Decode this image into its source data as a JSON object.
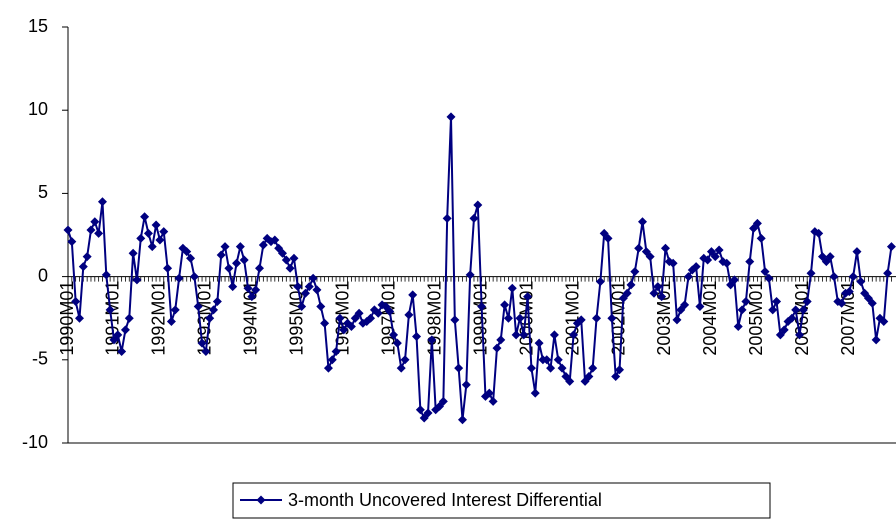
{
  "chart_data": {
    "type": "line",
    "categories": [
      "1990M01",
      null,
      null,
      null,
      null,
      null,
      null,
      null,
      null,
      null,
      null,
      null,
      "1991M01",
      null,
      null,
      null,
      null,
      null,
      null,
      null,
      null,
      null,
      null,
      null,
      "1992M01",
      null,
      null,
      null,
      null,
      null,
      null,
      null,
      null,
      null,
      null,
      null,
      "1993M01",
      null,
      null,
      null,
      null,
      null,
      null,
      null,
      null,
      null,
      null,
      null,
      "1994M01",
      null,
      null,
      null,
      null,
      null,
      null,
      null,
      null,
      null,
      null,
      null,
      "1995M01",
      null,
      null,
      null,
      null,
      null,
      null,
      null,
      null,
      null,
      null,
      null,
      "1996M01",
      null,
      null,
      null,
      null,
      null,
      null,
      null,
      null,
      null,
      null,
      null,
      "1997M01",
      null,
      null,
      null,
      null,
      null,
      null,
      null,
      null,
      null,
      null,
      null,
      "1998M01",
      null,
      null,
      null,
      null,
      null,
      null,
      null,
      null,
      null,
      null,
      null,
      "1999M01",
      null,
      null,
      null,
      null,
      null,
      null,
      null,
      null,
      null,
      null,
      null,
      "2000M01",
      null,
      null,
      null,
      null,
      null,
      null,
      null,
      null,
      null,
      null,
      null,
      "2001M01",
      null,
      null,
      null,
      null,
      null,
      null,
      null,
      null,
      null,
      null,
      null,
      "2002M01",
      null,
      null,
      null,
      null,
      null,
      null,
      null,
      null,
      null,
      null,
      null,
      "2003M01",
      null,
      null,
      null,
      null,
      null,
      null,
      null,
      null,
      null,
      null,
      null,
      "2004M01",
      null,
      null,
      null,
      null,
      null,
      null,
      null,
      null,
      null,
      null,
      null,
      "2005M01",
      null,
      null,
      null,
      null,
      null,
      null,
      null,
      null,
      null,
      null,
      null,
      "2006M01",
      null,
      null,
      null,
      null,
      null,
      null,
      null,
      null,
      null,
      null,
      null,
      "2007M01",
      null,
      null,
      null,
      null,
      null,
      null,
      null,
      null,
      null,
      null,
      null
    ],
    "series": [
      {
        "name": "3-month Uncovered Interest Differential",
        "color": "#000080",
        "values": [
          2.8,
          2.1,
          -1.5,
          -2.5,
          0.6,
          1.2,
          2.8,
          3.3,
          2.6,
          4.5,
          0.1,
          -2.0,
          -3.8,
          -3.5,
          -4.5,
          -3.2,
          -2.5,
          1.4,
          -0.2,
          2.3,
          3.6,
          2.6,
          1.8,
          3.1,
          2.2,
          2.7,
          0.5,
          -2.7,
          -2.0,
          -0.1,
          1.7,
          1.5,
          1.1,
          0.0,
          -1.8,
          -4.0,
          -4.5,
          -2.5,
          -2.0,
          -1.5,
          1.3,
          1.8,
          0.5,
          -0.6,
          0.8,
          1.8,
          1.0,
          -0.7,
          -1.2,
          -0.8,
          0.5,
          1.9,
          2.3,
          2.1,
          2.2,
          1.7,
          1.4,
          1.0,
          0.5,
          1.1,
          -0.6,
          -1.8,
          -1.0,
          -0.6,
          -0.1,
          -0.8,
          -1.8,
          -2.8,
          -5.5,
          -5.0,
          -4.5,
          -2.5,
          -3.2,
          -2.8,
          -3.0,
          -2.5,
          -2.2,
          -2.8,
          -2.7,
          -2.5,
          -2.0,
          -2.2,
          -1.7,
          -1.8,
          -2.1,
          -3.5,
          -4.0,
          -5.5,
          -5.0,
          -2.3,
          -1.1,
          -3.6,
          -8.0,
          -8.5,
          -8.2,
          -3.8,
          -8.0,
          -7.8,
          -7.5,
          3.5,
          9.6,
          -2.6,
          -5.5,
          -8.6,
          -6.5,
          0.1,
          3.5,
          4.3,
          -1.8,
          -7.2,
          -7.0,
          -7.5,
          -4.3,
          -3.8,
          -1.7,
          -2.5,
          -0.7,
          -3.5,
          -2.5,
          -3.5,
          -1.2,
          -5.5,
          -7.0,
          -4.0,
          -5.0,
          -5.0,
          -5.5,
          -3.5,
          -5.0,
          -5.5,
          -6.0,
          -6.3,
          -3.5,
          -2.8,
          -2.6,
          -6.3,
          -6.0,
          -5.5,
          -2.5,
          -0.3,
          2.6,
          2.3,
          -2.5,
          -6.0,
          -5.6,
          -1.3,
          -1.0,
          -0.5,
          0.3,
          1.7,
          3.3,
          1.5,
          1.2,
          -1.0,
          -0.6,
          -1.2,
          1.7,
          0.9,
          0.8,
          -2.6,
          -2.0,
          -1.7,
          0.0,
          0.4,
          0.6,
          -1.8,
          1.1,
          1.0,
          1.5,
          1.2,
          1.6,
          0.9,
          0.8,
          -0.5,
          -0.2,
          -3.0,
          -2.0,
          -1.5,
          0.9,
          2.9,
          3.2,
          2.3,
          0.3,
          -0.1,
          -2.0,
          -1.5,
          -3.5,
          -3.2,
          -2.7,
          -2.5,
          -2.0,
          -3.5,
          -2.0,
          -1.5,
          0.2,
          2.7,
          2.6,
          1.2,
          0.9,
          1.2,
          0.0,
          -1.5,
          -1.6,
          -1.0,
          -0.9,
          0.0,
          1.5,
          -0.3,
          -1.0,
          -1.3,
          -1.6,
          -3.8,
          -2.5,
          -2.7,
          0.2,
          1.8
        ]
      }
    ],
    "ylim": [
      -10,
      15
    ],
    "yticks": [
      -10,
      -5,
      0,
      5,
      10,
      15
    ],
    "grid": false,
    "legend": "bottom"
  }
}
